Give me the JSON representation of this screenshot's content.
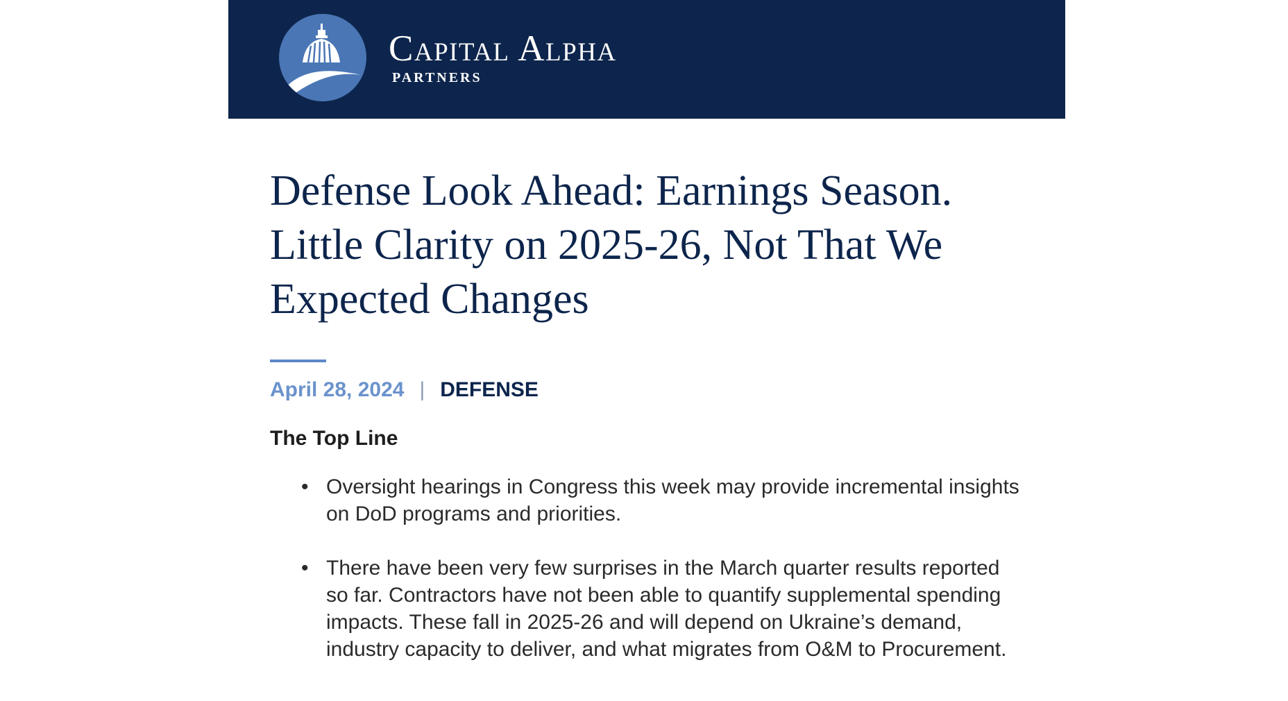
{
  "header": {
    "logo_icon": "capitol-dome-icon",
    "brand_name": "Capital Alpha",
    "brand_sub": "PARTNERS",
    "background": "#0d254c",
    "logo_circle_color": "#4a76b5"
  },
  "article": {
    "title": "Defense Look Ahead: Earnings Season. Little Clarity on 2025-26, Not That We Expected Changes",
    "date": "April 28, 2024",
    "separator": "|",
    "category": "DEFENSE",
    "section_heading": "The Top Line",
    "bullets": [
      "Oversight hearings in Congress this week may provide incremental insights on DoD programs and priorities.",
      "There have been very few surprises in the March quarter results reported so far. Contractors have not been able to quantify supplemental spending impacts. These fall in 2025-26 and will depend on Ukraine’s demand, industry capacity to deliver, and what migrates from O&M to Procurement."
    ],
    "bullet_symbol": "•"
  },
  "colors": {
    "title": "#0d254c",
    "date": "#6b93cc",
    "accent_rule": "#5b88c8",
    "body_text": "#2a2a2a"
  }
}
